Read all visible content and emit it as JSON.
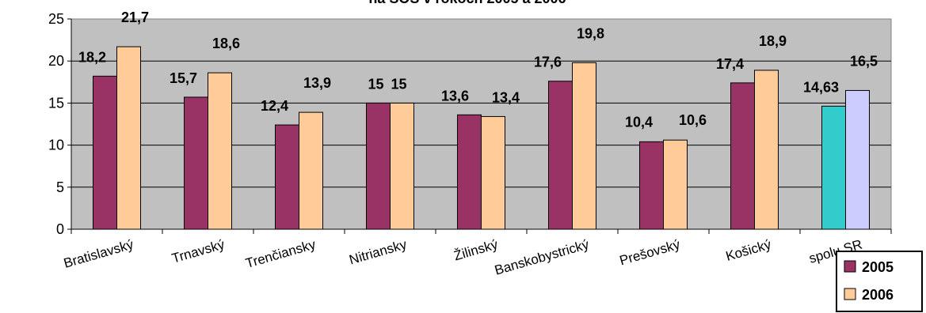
{
  "chart_data": {
    "type": "bar",
    "title": "na SOŠ v rokoch 2005 a 2006",
    "categories": [
      "Bratislavský",
      "Trnavský",
      "Trenčiansky",
      "Nitriansky",
      "Žilinský",
      "Banskobystrický",
      "Prešovský",
      "Košický",
      "spolu SR"
    ],
    "series": [
      {
        "name": "2005",
        "values": [
          18.2,
          15.7,
          12.4,
          15,
          13.6,
          17.6,
          10.4,
          17.4,
          14.63
        ],
        "labels": [
          "18,2",
          "15,7",
          "12,4",
          "15",
          "13,6",
          "17,6",
          "10,4",
          "17,4",
          "14,63"
        ],
        "color": "#993366",
        "last_color": "#33CCCC"
      },
      {
        "name": "2006",
        "values": [
          21.7,
          18.6,
          13.9,
          15,
          13.4,
          19.8,
          10.6,
          18.9,
          16.5
        ],
        "labels": [
          "21,7",
          "18,6",
          "13,9",
          "15",
          "13,4",
          "19,8",
          "10,6",
          "18,9",
          "16,5"
        ],
        "color": "#FFCC99",
        "last_color": "#CCCCFF"
      }
    ],
    "ylim": [
      0,
      25
    ],
    "yticks": [
      "0",
      "5",
      "10",
      "15",
      "20",
      "25"
    ],
    "grid": true,
    "plot_background": "#C0C0C0",
    "legend_position": "bottom-right"
  }
}
